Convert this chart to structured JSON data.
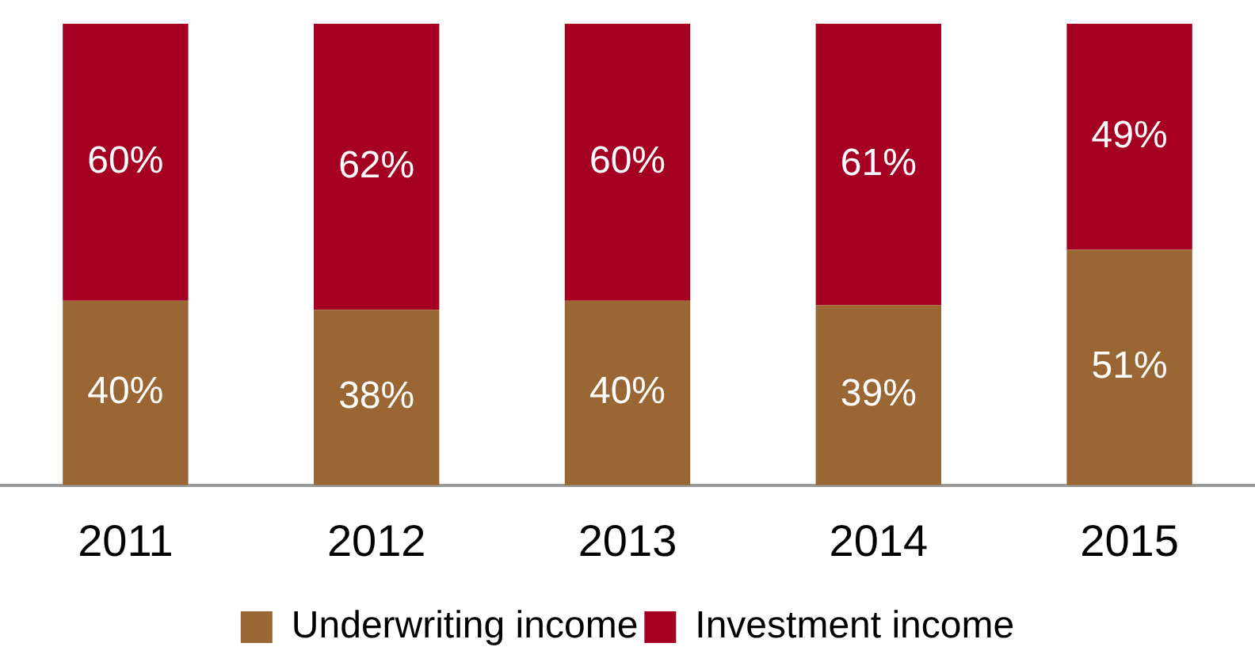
{
  "chart_data": {
    "type": "bar",
    "stacked": true,
    "categories": [
      "2011",
      "2012",
      "2013",
      "2014",
      "2015"
    ],
    "series": [
      {
        "name": "Underwriting income",
        "color": "#9a6634",
        "values": [
          40,
          38,
          40,
          39,
          51
        ],
        "value_labels": [
          "40%",
          "38%",
          "40%",
          "39%",
          "51%"
        ]
      },
      {
        "name": "Investment income",
        "color": "#a50021",
        "values": [
          60,
          62,
          60,
          61,
          49
        ],
        "value_labels": [
          "60%",
          "62%",
          "60%",
          "61%",
          "49%"
        ]
      }
    ],
    "ylim": [
      0,
      100
    ],
    "tick_labels": "x",
    "grid": false,
    "legend": "bottom"
  }
}
